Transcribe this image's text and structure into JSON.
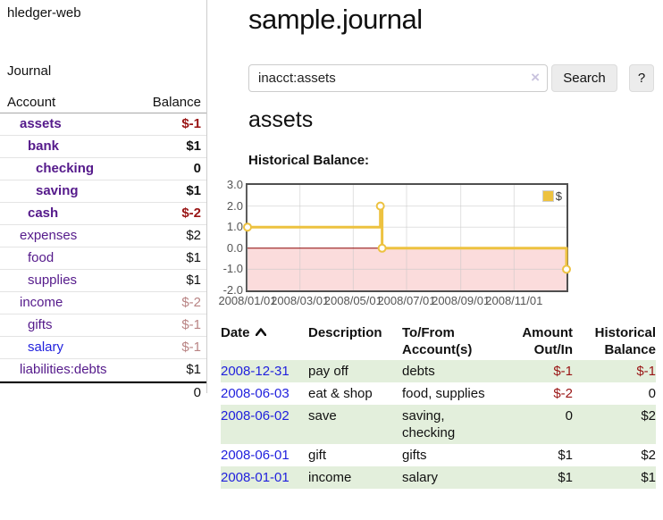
{
  "colors": {
    "link_purple": "#551a8b",
    "link_blue": "#1f1fdd",
    "text_black": "#111111",
    "negative_strong": "#991414",
    "negative_faded": "#b98484",
    "stripe_green": "#e3efdc",
    "chart_line": "#edc240",
    "chart_negative_fill": "#fbdcdc",
    "chart_zero_line": "#8b0000",
    "grid_line": "#c8c8c8"
  },
  "sidebar": {
    "app_title": "hledger-web",
    "journal_label": "Journal",
    "accounts": {
      "header_account": "Account",
      "header_balance": "Balance",
      "rows": [
        {
          "name": "assets",
          "depth": 1,
          "bold": true,
          "link_color": "purple",
          "balance": "$-1"
        },
        {
          "name": "bank",
          "depth": 2,
          "bold": true,
          "link_color": "purple",
          "balance": "$1"
        },
        {
          "name": "checking",
          "depth": 3,
          "bold": true,
          "link_color": "purple",
          "balance": "0"
        },
        {
          "name": "saving",
          "depth": 3,
          "bold": true,
          "link_color": "purple",
          "balance": "$1"
        },
        {
          "name": "cash",
          "depth": 2,
          "bold": true,
          "link_color": "purple",
          "balance": "$-2"
        },
        {
          "name": "expenses",
          "depth": 1,
          "bold": false,
          "link_color": "purple",
          "balance": "$2"
        },
        {
          "name": "food",
          "depth": 2,
          "bold": false,
          "link_color": "purple",
          "balance": "$1"
        },
        {
          "name": "supplies",
          "depth": 2,
          "bold": false,
          "link_color": "purple",
          "balance": "$1"
        },
        {
          "name": "income",
          "depth": 1,
          "bold": false,
          "link_color": "purple",
          "balance": "$-2"
        },
        {
          "name": "gifts",
          "depth": 2,
          "bold": false,
          "link_color": "purple",
          "balance": "$-1"
        },
        {
          "name": "salary",
          "depth": 2,
          "bold": false,
          "link_color": "blue",
          "balance": "$-1"
        },
        {
          "name": "liabilities:debts",
          "depth": 1,
          "bold": false,
          "link_color": "purple",
          "balance": "$1"
        }
      ],
      "total": "0"
    }
  },
  "main": {
    "title": "sample.journal",
    "search": {
      "value": "inacct:assets",
      "clear_icon": "×",
      "button_label": "Search",
      "help_label": "?"
    },
    "account_heading": "assets",
    "chart_label": "Historical Balance:"
  },
  "chart_data": {
    "type": "line",
    "title": "Historical Balance:",
    "legend": "$",
    "legend_position": "top-right",
    "grid": true,
    "ylim": [
      -2,
      3
    ],
    "y_ticks": [
      3.0,
      2.0,
      1.0,
      0.0,
      -1.0,
      -2.0
    ],
    "x_ticks": [
      "2008/01/01",
      "2008/03/01",
      "2008/05/01",
      "2008/07/01",
      "2008/09/01",
      "2008/11/01"
    ],
    "x_range": [
      "2008-01-01",
      "2008-12-31"
    ],
    "series": [
      {
        "name": "$",
        "step": true,
        "points": [
          [
            "2008-01-01",
            1
          ],
          [
            "2008-06-01",
            2
          ],
          [
            "2008-06-03",
            0
          ],
          [
            "2008-12-31",
            -1
          ]
        ]
      }
    ]
  },
  "transactions": {
    "headers": {
      "date": "Date",
      "description": "Description",
      "account": "To/From Account(s)",
      "amount": "Amount Out/In",
      "balance": "Historical Balance"
    },
    "rows": [
      {
        "date": "2008-12-31",
        "description": "pay off",
        "account": "debts",
        "amount": "$-1",
        "balance": "$-1"
      },
      {
        "date": "2008-06-03",
        "description": "eat & shop",
        "account": "food, supplies",
        "amount": "$-2",
        "balance": "0"
      },
      {
        "date": "2008-06-02",
        "description": "save",
        "account": "saving, checking",
        "amount": "0",
        "balance": "$2"
      },
      {
        "date": "2008-06-01",
        "description": "gift",
        "account": "gifts",
        "amount": "$1",
        "balance": "$2"
      },
      {
        "date": "2008-01-01",
        "description": "income",
        "account": "salary",
        "amount": "$1",
        "balance": "$1"
      }
    ]
  }
}
